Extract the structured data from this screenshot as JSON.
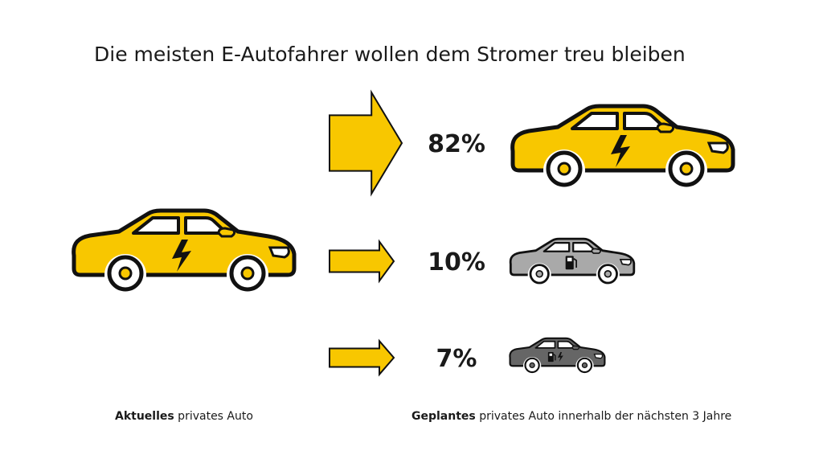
{
  "title": "Die meisten E-Autofahrer wollen dem Stromer treu bleiben",
  "colors": {
    "yellow": "#f8c700",
    "outline": "#111111",
    "gray_light": "#a9a9a9",
    "gray_dark": "#666666"
  },
  "footer": {
    "left_bold": "Aktuelles",
    "left_rest": " privates Auto",
    "right_bold": "Geplantes",
    "right_rest": " privates Auto innerhalb der nächsten 3 Jahre"
  },
  "chart_data": {
    "type": "bar",
    "title": "Die meisten E-Autofahrer wollen dem Stromer treu bleiben",
    "current": {
      "label": "Aktuelles privates Auto",
      "icon": "electric-car-icon",
      "color": "#f8c700"
    },
    "categories": [
      "electric-car",
      "combustion-car",
      "hybrid-car"
    ],
    "values": [
      82,
      10,
      7
    ],
    "value_labels": [
      "82%",
      "10%",
      "7%"
    ],
    "car_colors": [
      "#f8c700",
      "#a9a9a9",
      "#666666"
    ],
    "car_icons": [
      "lightning-icon",
      "fuel-pump-icon",
      "fuel-pump-lightning-icon"
    ]
  }
}
